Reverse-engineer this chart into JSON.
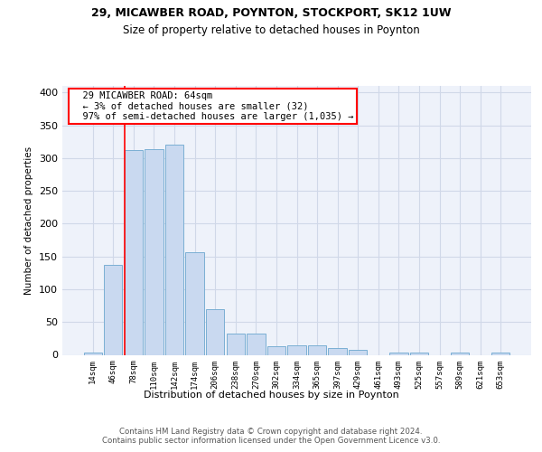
{
  "title1": "29, MICAWBER ROAD, POYNTON, STOCKPORT, SK12 1UW",
  "title2": "Size of property relative to detached houses in Poynton",
  "xlabel": "Distribution of detached houses by size in Poynton",
  "ylabel": "Number of detached properties",
  "bin_labels": [
    "14sqm",
    "46sqm",
    "78sqm",
    "110sqm",
    "142sqm",
    "174sqm",
    "206sqm",
    "238sqm",
    "270sqm",
    "302sqm",
    "334sqm",
    "365sqm",
    "397sqm",
    "429sqm",
    "461sqm",
    "493sqm",
    "525sqm",
    "557sqm",
    "589sqm",
    "621sqm",
    "653sqm"
  ],
  "bar_values": [
    4,
    137,
    312,
    313,
    320,
    157,
    70,
    33,
    33,
    13,
    15,
    15,
    10,
    7,
    0,
    4,
    4,
    0,
    4,
    0,
    4
  ],
  "bar_color": "#c9d9f0",
  "bar_edge_color": "#7bafd4",
  "grid_color": "#d0d8e8",
  "background_color": "#eef2fa",
  "annotation_text": "  29 MICAWBER ROAD: 64sqm\n  ← 3% of detached houses are smaller (32)\n  97% of semi-detached houses are larger (1,035) →",
  "annotation_box_color": "white",
  "annotation_box_edge_color": "red",
  "vline_color": "red",
  "vline_x": 1.56,
  "footer_text": "Contains HM Land Registry data © Crown copyright and database right 2024.\nContains public sector information licensed under the Open Government Licence v3.0.",
  "ylim": [
    0,
    410
  ],
  "yticks": [
    0,
    50,
    100,
    150,
    200,
    250,
    300,
    350,
    400
  ]
}
